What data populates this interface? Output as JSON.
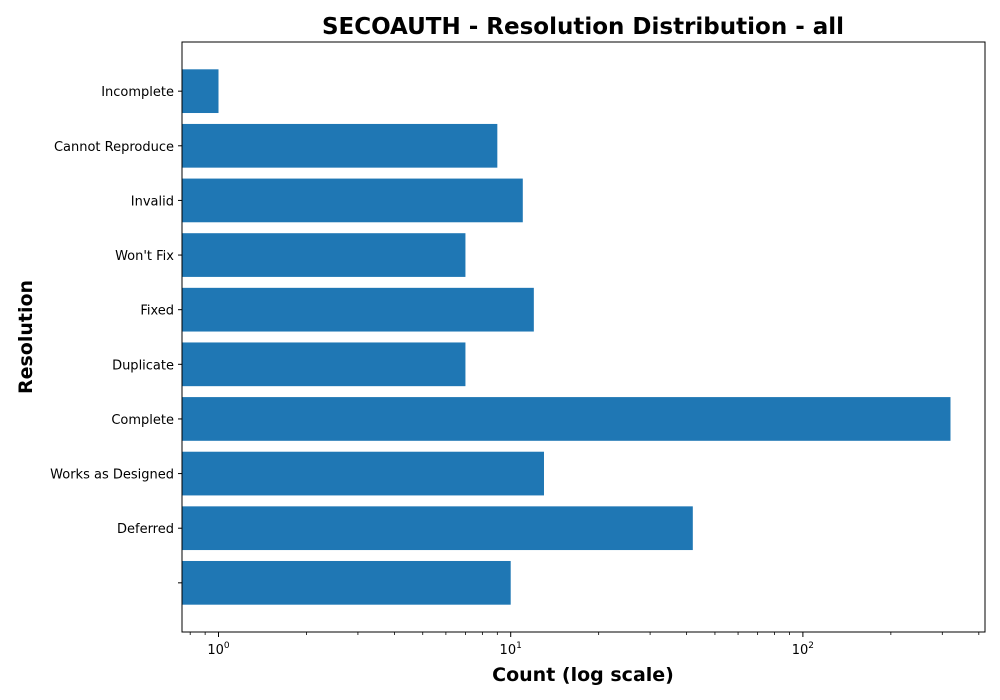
{
  "chart_data": {
    "type": "bar",
    "orientation": "horizontal",
    "title": "SECOAUTH - Resolution Distribution - all",
    "xlabel": "Count (log scale)",
    "ylabel": "Resolution",
    "x_scale": "log",
    "xlim": [
      0.75,
      420
    ],
    "x_ticks": [
      {
        "value": 1,
        "base": "10",
        "exp": "0"
      },
      {
        "value": 10,
        "base": "10",
        "exp": "1"
      },
      {
        "value": 100,
        "base": "10",
        "exp": "2"
      }
    ],
    "grid": false,
    "bar_color": "#1f77b4",
    "categories": [
      "Incomplete",
      "Cannot Reproduce",
      "Invalid",
      "Won't Fix",
      "Fixed",
      "Duplicate",
      "Complete",
      "Works as Designed",
      "Deferred",
      ""
    ],
    "values": [
      1,
      9,
      11,
      7,
      12,
      7,
      320,
      13,
      42,
      10
    ]
  }
}
